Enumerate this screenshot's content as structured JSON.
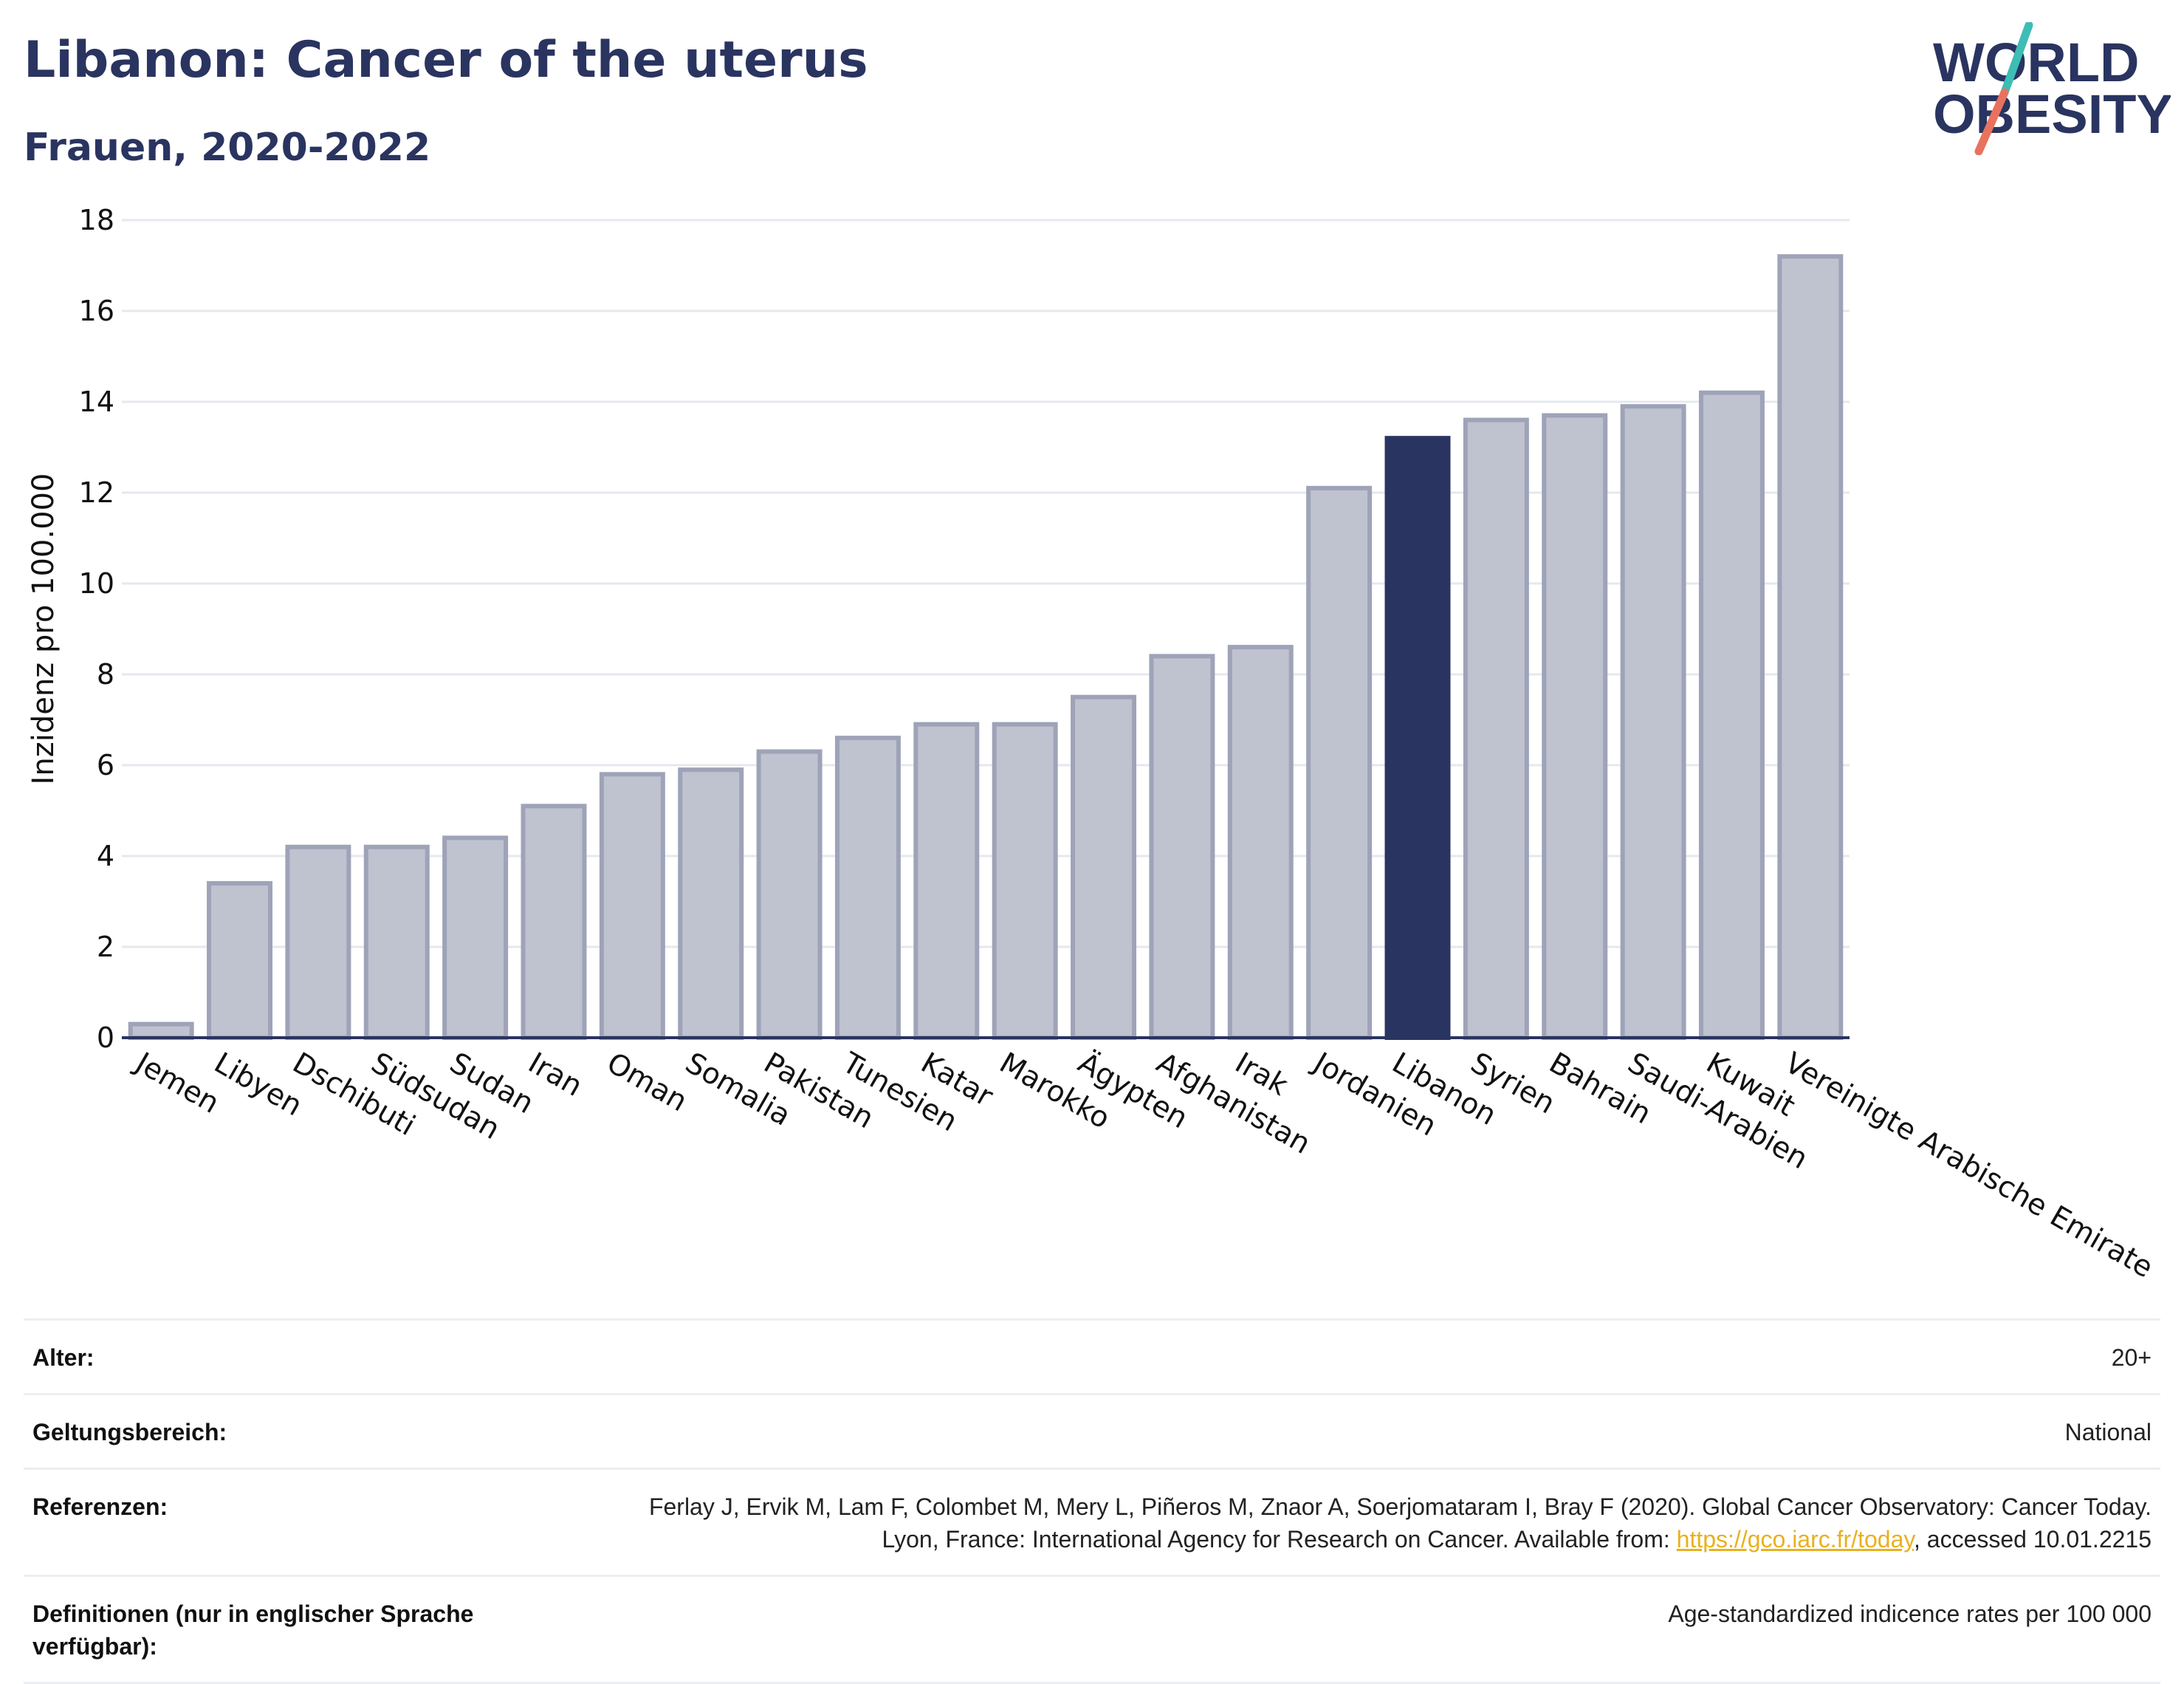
{
  "header": {
    "title": "Libanon: Cancer of the uterus",
    "subtitle": "Frauen, 2020-2022"
  },
  "logo": {
    "line1": "WORLD",
    "line2": "OBESITY",
    "colors": {
      "text": "#2a3460",
      "slash_top": "#3dbdb5",
      "slash_bottom": "#e8725e"
    }
  },
  "chart_data": {
    "type": "bar",
    "ylabel": "Inzidenz pro 100.000",
    "ylim": [
      0,
      18
    ],
    "yticks": [
      0,
      2,
      4,
      6,
      8,
      10,
      12,
      14,
      16,
      18
    ],
    "grid": true,
    "highlight": "Libanon",
    "colors": {
      "bar": "#bfc2cf",
      "bar_border": "#9ea3b8",
      "highlight": "#2a3460",
      "grid": "#e6e8ee",
      "axis": "#2a3460"
    },
    "categories": [
      "Jemen",
      "Libyen",
      "Dschibuti",
      "Südsudan",
      "Sudan",
      "Iran",
      "Oman",
      "Somalia",
      "Pakistan",
      "Tunesien",
      "Katar",
      "Marokko",
      "Ägypten",
      "Afghanistan",
      "Irak",
      "Jordanien",
      "Libanon",
      "Syrien",
      "Bahrain",
      "Saudi-Arabien",
      "Kuwait",
      "Vereinigte Arabische Emirate"
    ],
    "values": [
      0.3,
      3.4,
      4.2,
      4.2,
      4.4,
      5.1,
      5.8,
      5.9,
      6.3,
      6.6,
      6.9,
      6.9,
      7.5,
      8.4,
      8.6,
      12.1,
      13.2,
      13.6,
      13.7,
      13.9,
      14.2,
      17.2
    ]
  },
  "meta": {
    "age_label": "Alter:",
    "age_value": "20+",
    "scope_label": "Geltungsbereich:",
    "scope_value": "National",
    "refs_label": "Referenzen:",
    "refs_text": "Ferlay J, Ervik M, Lam F, Colombet M, Mery L, Piñeros M, Znaor A, Soerjomataram I, Bray F (2020). Global Cancer Observatory: Cancer Today. Lyon, France: International Agency for Research on Cancer. Available from:",
    "refs_link": "https://gco.iarc.fr/today",
    "refs_suffix": ", accessed 10.01.2215",
    "defs_label": "Definitionen (nur in englischer Sprache verfügbar):",
    "defs_value": "Age-standardized indicence rates per 100 000"
  }
}
